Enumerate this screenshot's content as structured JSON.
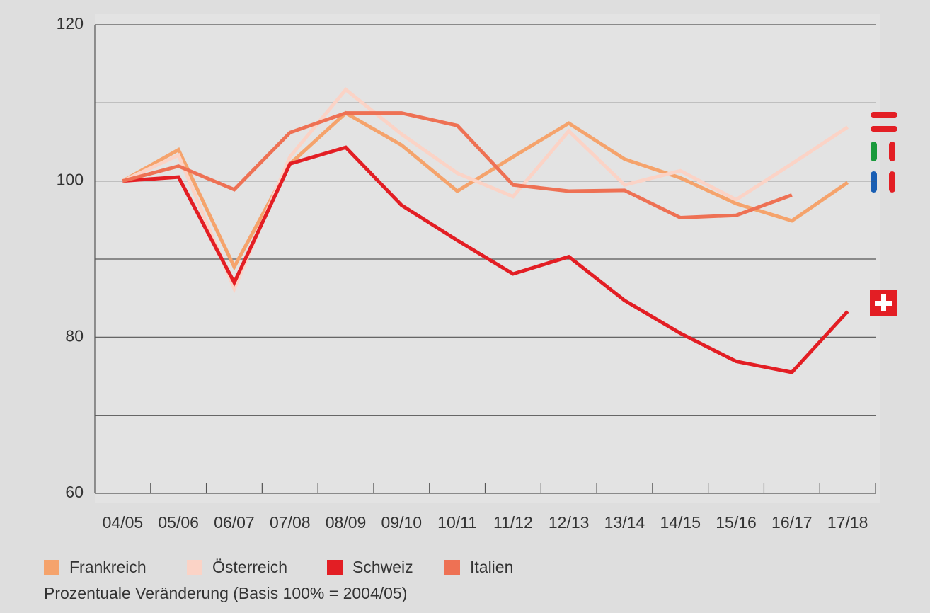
{
  "chart_data": {
    "type": "line",
    "categories": [
      "04/05",
      "05/06",
      "06/07",
      "07/08",
      "08/09",
      "09/10",
      "10/11",
      "11/12",
      "12/13",
      "13/14",
      "14/15",
      "15/16",
      "16/17",
      "17/18"
    ],
    "series": [
      {
        "name": "Frankreich",
        "color": "#f5a36c",
        "values": [
          100,
          104,
          89,
          102.2,
          108.7,
          104.6,
          98.7,
          103.1,
          107.4,
          102.8,
          100.4,
          97.1,
          94.9,
          99.8
        ]
      },
      {
        "name": "Österreich",
        "color": "#fbd3c6",
        "values": [
          100,
          103.3,
          86.2,
          103.1,
          111.7,
          106,
          101,
          98,
          106.4,
          99.5,
          101.3,
          97.6,
          102.2,
          106.9
        ]
      },
      {
        "name": "Schweiz",
        "color": "#e31e24",
        "values": [
          100,
          100.5,
          87,
          102.2,
          104.3,
          96.9,
          92.4,
          88.1,
          90.3,
          84.7,
          80.5,
          76.9,
          75.5,
          83.3
        ]
      },
      {
        "name": "Italien",
        "color": "#ee7154",
        "values": [
          100,
          101.9,
          98.9,
          106.2,
          108.7,
          108.7,
          107.1,
          99.5,
          98.7,
          98.8,
          95.3,
          95.6,
          98.2,
          null
        ]
      }
    ],
    "ylim": [
      60,
      120
    ],
    "yticks": [
      60,
      80,
      100,
      120
    ],
    "minor_yticks": [
      70,
      90,
      110
    ],
    "grid": true,
    "note": "Prozentuale Veränderung (Basis 100% = 2004/05)"
  }
}
